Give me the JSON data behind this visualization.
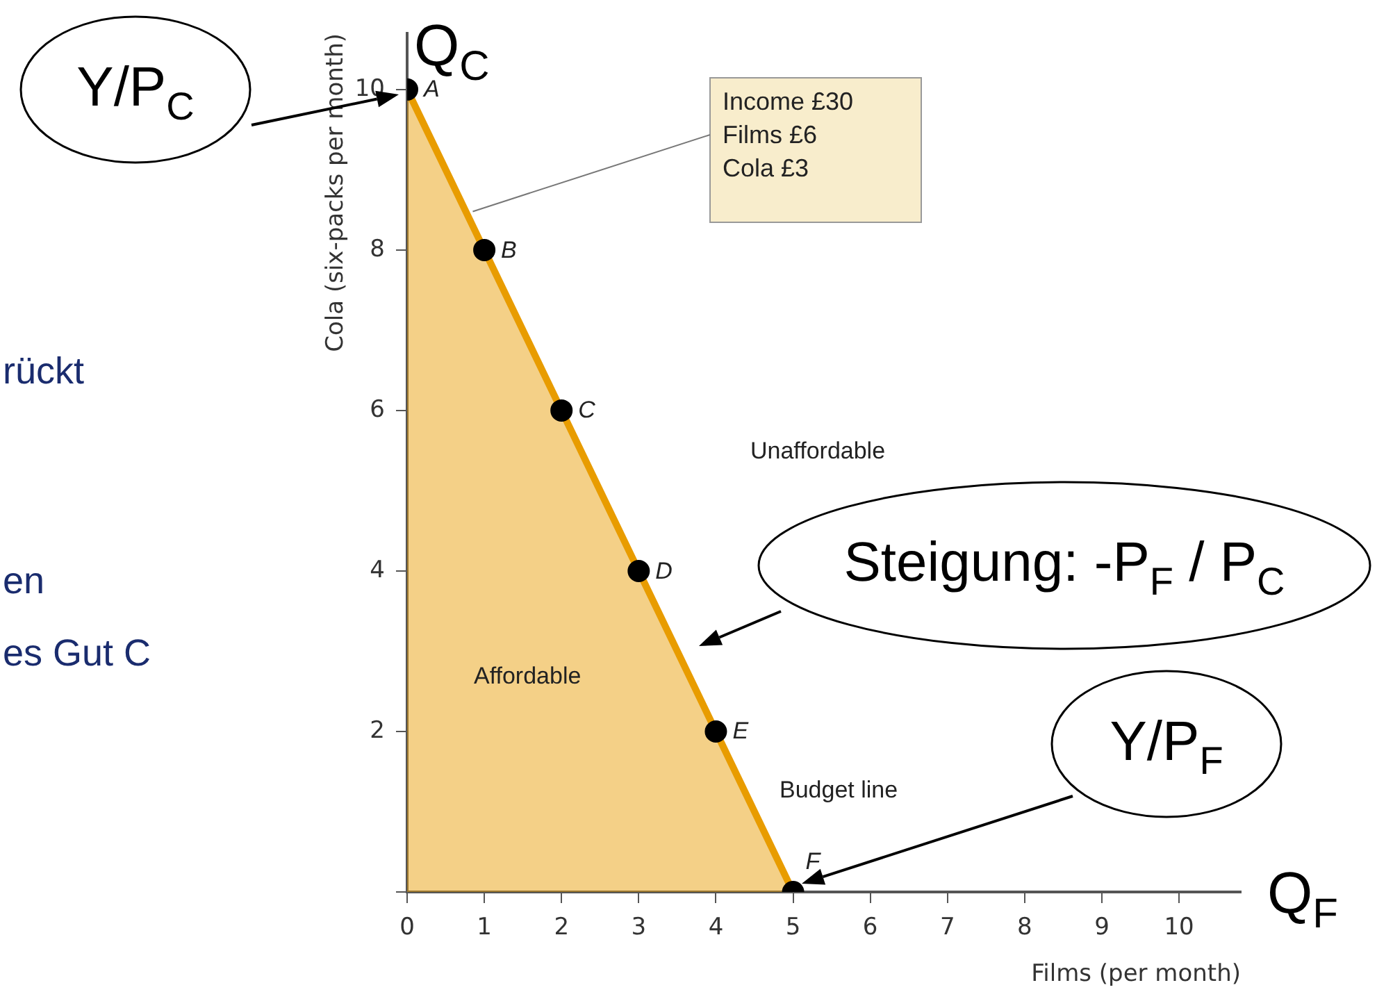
{
  "chart_data": {
    "type": "area",
    "xlabel": "Films (per month)",
    "ylabel": "Cola (six-packs per month)",
    "x": [
      0,
      1,
      2,
      3,
      4,
      5
    ],
    "series": [
      {
        "color": "#e89c00",
        "values": [
          10,
          8,
          6,
          4,
          2,
          0
        ],
        "marker": "none"
      },
      {
        "type": "scatter",
        "color": "#000000",
        "values": [
          10,
          8,
          6,
          4,
          2,
          0
        ],
        "marker": "circle"
      }
    ],
    "xlim": [
      0,
      10.8
    ],
    "ylim": [
      0,
      10.7
    ],
    "xticks": [
      0,
      1,
      2,
      3,
      4,
      5,
      6,
      7,
      8,
      9,
      10
    ],
    "yticks": [
      {
        "value": 0,
        "label": null
      },
      2,
      4,
      6,
      8,
      10
    ],
    "grid": false,
    "legend": false,
    "annotations": [
      "Q$_{C}$",
      "Q$_{F}$",
      {
        "text": "A",
        "x": 0,
        "y": 10
      },
      {
        "text": "B",
        "x": 1,
        "y": 8
      },
      {
        "text": "C",
        "x": 2,
        "y": 6
      },
      {
        "text": "D",
        "x": 3,
        "y": 4
      },
      {
        "text": "E",
        "x": 4,
        "y": 2
      },
      {
        "text": "F",
        "x": 5,
        "y": 0
      },
      "Affordable",
      "Unaffordable",
      "Budget line",
      "Income £30",
      {
        "text": "Films £6",
        "x": 0.85,
        "y": 8.48
      },
      "Cola £3",
      "Y/P$_{C}$",
      "Steigung: -P$_{F}$ / P$_{C}$",
      "Y/P$_{F}$",
      "rückt",
      "en",
      "es Gut C"
    ]
  }
}
